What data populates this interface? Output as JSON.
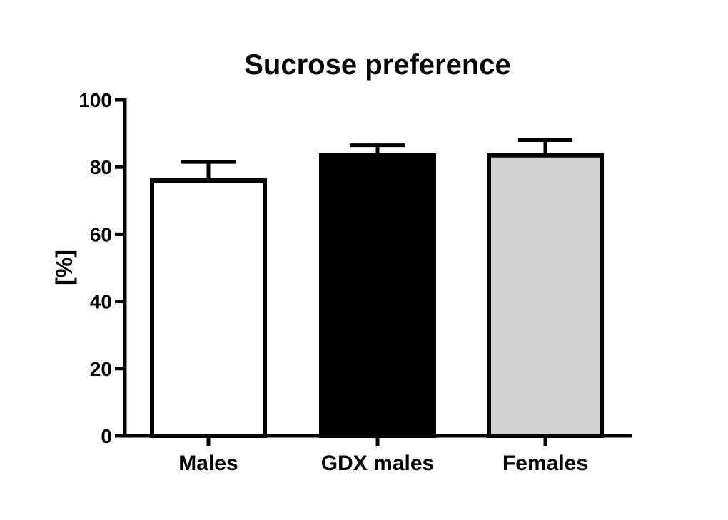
{
  "chart_data": {
    "type": "bar",
    "title": "Sucrose preference",
    "xlabel": "",
    "ylabel": "[%]",
    "ylim": [
      0,
      100
    ],
    "yticks": [
      0,
      20,
      40,
      60,
      80,
      100
    ],
    "yticklabels": [
      "0",
      "20",
      "40",
      "60",
      "80",
      "100"
    ],
    "categories": [
      "Males",
      "GDX males",
      "Females"
    ],
    "values": [
      76,
      83.5,
      83.5
    ],
    "error_upper": [
      5.5,
      3,
      4.5
    ],
    "bar_colors": [
      "#ffffff",
      "#000000",
      "#d3d3d3"
    ],
    "edge_color": "#000000",
    "grid": false,
    "legend": "none"
  }
}
